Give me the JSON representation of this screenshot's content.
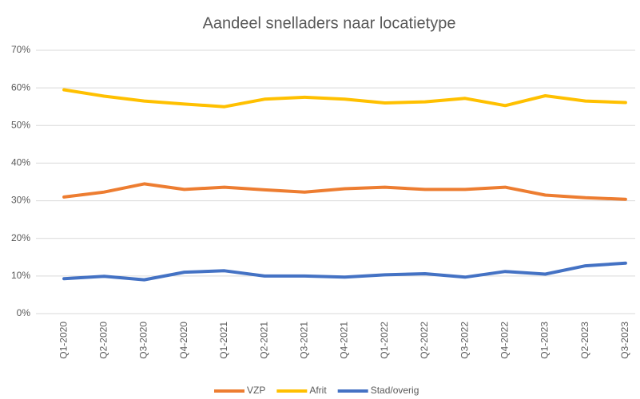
{
  "chart_data": {
    "type": "line",
    "title": "Aandeel snelladers naar locatietype",
    "categories": [
      "Q1-2020",
      "Q2-2020",
      "Q3-2020",
      "Q4-2020",
      "Q1-2021",
      "Q2-2021",
      "Q3-2021",
      "Q4-2021",
      "Q1-2022",
      "Q2-2022",
      "Q3-2022",
      "Q4-2022",
      "Q1-2023",
      "Q2-2023",
      "Q3-2023"
    ],
    "series": [
      {
        "name": "VZP",
        "color": "#ed7d31",
        "values": [
          31.0,
          32.3,
          34.5,
          33.0,
          33.6,
          32.9,
          32.3,
          33.2,
          33.6,
          33.0,
          33.0,
          33.6,
          31.5,
          30.8,
          30.4
        ]
      },
      {
        "name": "Afrit",
        "color": "#ffc000",
        "values": [
          59.5,
          57.8,
          56.5,
          55.7,
          55.0,
          57.0,
          57.5,
          57.0,
          56.0,
          56.3,
          57.2,
          55.3,
          57.9,
          56.5,
          56.1
        ]
      },
      {
        "name": "Stad/overig",
        "color": "#4472c4",
        "values": [
          9.3,
          9.9,
          9.0,
          11.0,
          11.4,
          10.0,
          10.0,
          9.7,
          10.3,
          10.6,
          9.7,
          11.2,
          10.5,
          12.7,
          13.4
        ]
      }
    ],
    "ylim": [
      0,
      70
    ],
    "yticks": [
      {
        "value": 0,
        "label": "0%"
      },
      {
        "value": 10,
        "label": "10%"
      },
      {
        "value": 20,
        "label": "20%"
      },
      {
        "value": 30,
        "label": "30%"
      },
      {
        "value": 40,
        "label": "40%"
      },
      {
        "value": 50,
        "label": "50%"
      },
      {
        "value": 60,
        "label": "60%"
      },
      {
        "value": 70,
        "label": "70%"
      }
    ],
    "grid": true,
    "legend": "bottom"
  }
}
